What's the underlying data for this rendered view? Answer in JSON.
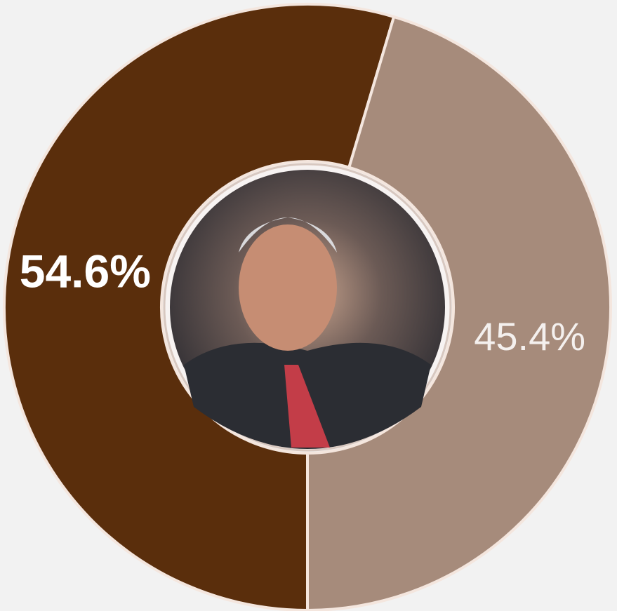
{
  "chart_data": {
    "type": "donut",
    "values": [
      54.6,
      45.4
    ],
    "value_labels": [
      "54.6%",
      "45.4%"
    ],
    "colors": [
      "#5a2e0c",
      "#a68b7b"
    ]
  }
}
